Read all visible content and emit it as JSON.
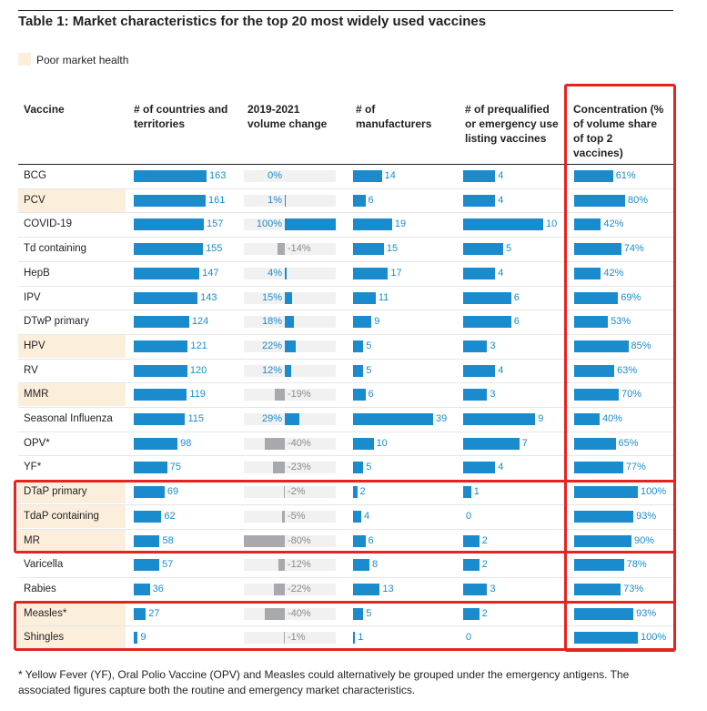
{
  "title": "Table 1: Market characteristics for the top 20 most widely used vaccines",
  "legend": {
    "label": "Poor market health",
    "color": "#fbefdc"
  },
  "headers": {
    "vaccine": "Vaccine",
    "countries": "# of countries and territories",
    "volume": "2019-2021 volume change",
    "manufacturers": "# of manufacturers",
    "prequalified": "# of prequalified or emergency use listing vaccines",
    "concentration": "Concentration (% of volume share of top 2 vaccines)"
  },
  "colors": {
    "bar": "#1a8ccd",
    "negative": "#a7a9ac",
    "highlight": "#e52421"
  },
  "footnote": "* Yellow Fever (YF), Oral Polio Vaccine (OPV) and Measles could alternatively be grouped under the emergency antigens.  The associated figures capture both the routine and emergency market characteristics.",
  "chart_data": {
    "type": "table",
    "columns": [
      "Vaccine",
      "# of countries and territories",
      "2019-2021 volume change",
      "# of manufacturers",
      "# of prequalified or emergency use listing vaccines",
      "Concentration (% of volume share of top 2 vaccines)"
    ],
    "rows": [
      {
        "vaccine": "BCG",
        "poor": false,
        "countries": 163,
        "volume": 0,
        "volume_label": "0%",
        "manufacturers": 14,
        "prequalified": 4,
        "concentration": 61
      },
      {
        "vaccine": "PCV",
        "poor": true,
        "countries": 161,
        "volume": 1,
        "volume_label": "1%",
        "manufacturers": 6,
        "prequalified": 4,
        "concentration": 80
      },
      {
        "vaccine": "COVID-19",
        "poor": false,
        "countries": 157,
        "volume": 100,
        "volume_label": "100%",
        "manufacturers": 19,
        "prequalified": 10,
        "concentration": 42
      },
      {
        "vaccine": "Td containing",
        "poor": false,
        "countries": 155,
        "volume": -14,
        "volume_label": "-14%",
        "manufacturers": 15,
        "prequalified": 5,
        "concentration": 74
      },
      {
        "vaccine": "HepB",
        "poor": false,
        "countries": 147,
        "volume": 4,
        "volume_label": "4%",
        "manufacturers": 17,
        "prequalified": 4,
        "concentration": 42
      },
      {
        "vaccine": "IPV",
        "poor": false,
        "countries": 143,
        "volume": 15,
        "volume_label": "15%",
        "manufacturers": 11,
        "prequalified": 6,
        "concentration": 69
      },
      {
        "vaccine": "DTwP primary",
        "poor": false,
        "countries": 124,
        "volume": 18,
        "volume_label": "18%",
        "manufacturers": 9,
        "prequalified": 6,
        "concentration": 53
      },
      {
        "vaccine": "HPV",
        "poor": true,
        "countries": 121,
        "volume": 22,
        "volume_label": "22%",
        "manufacturers": 5,
        "prequalified": 3,
        "concentration": 85
      },
      {
        "vaccine": "RV",
        "poor": false,
        "countries": 120,
        "volume": 12,
        "volume_label": "12%",
        "manufacturers": 5,
        "prequalified": 4,
        "concentration": 63
      },
      {
        "vaccine": "MMR",
        "poor": true,
        "countries": 119,
        "volume": -19,
        "volume_label": "-19%",
        "manufacturers": 6,
        "prequalified": 3,
        "concentration": 70
      },
      {
        "vaccine": "Seasonal Influenza",
        "poor": false,
        "countries": 115,
        "volume": 29,
        "volume_label": "29%",
        "manufacturers": 39,
        "prequalified": 9,
        "concentration": 40
      },
      {
        "vaccine": "OPV*",
        "poor": false,
        "countries": 98,
        "volume": -40,
        "volume_label": "-40%",
        "manufacturers": 10,
        "prequalified": 7,
        "concentration": 65
      },
      {
        "vaccine": "YF*",
        "poor": false,
        "countries": 75,
        "volume": -23,
        "volume_label": "-23%",
        "manufacturers": 5,
        "prequalified": 4,
        "concentration": 77
      },
      {
        "vaccine": "DTaP primary",
        "poor": true,
        "countries": 69,
        "volume": -2,
        "volume_label": "-2%",
        "manufacturers": 2,
        "prequalified": 1,
        "concentration": 100
      },
      {
        "vaccine": "TdaP containing",
        "poor": true,
        "countries": 62,
        "volume": -5,
        "volume_label": "-5%",
        "manufacturers": 4,
        "prequalified": 0,
        "concentration": 93
      },
      {
        "vaccine": "MR",
        "poor": true,
        "countries": 58,
        "volume": -80,
        "volume_label": "-80%",
        "manufacturers": 6,
        "prequalified": 2,
        "concentration": 90
      },
      {
        "vaccine": "Varicella",
        "poor": false,
        "countries": 57,
        "volume": -12,
        "volume_label": "-12%",
        "manufacturers": 8,
        "prequalified": 2,
        "concentration": 78
      },
      {
        "vaccine": "Rabies",
        "poor": false,
        "countries": 36,
        "volume": -22,
        "volume_label": "-22%",
        "manufacturers": 13,
        "prequalified": 3,
        "concentration": 73
      },
      {
        "vaccine": "Measles*",
        "poor": true,
        "countries": 27,
        "volume": -40,
        "volume_label": "-40%",
        "manufacturers": 5,
        "prequalified": 2,
        "concentration": 93
      },
      {
        "vaccine": "Shingles",
        "poor": true,
        "countries": 9,
        "volume": -1,
        "volume_label": "-1%",
        "manufacturers": 1,
        "prequalified": 0,
        "concentration": 100
      }
    ],
    "highlighted_row_groups": [
      [
        "DTaP primary",
        "TdaP containing",
        "MR"
      ],
      [
        "Measles*",
        "Shingles"
      ]
    ],
    "highlighted_column": "Concentration (% of volume share of top 2 vaccines)"
  }
}
